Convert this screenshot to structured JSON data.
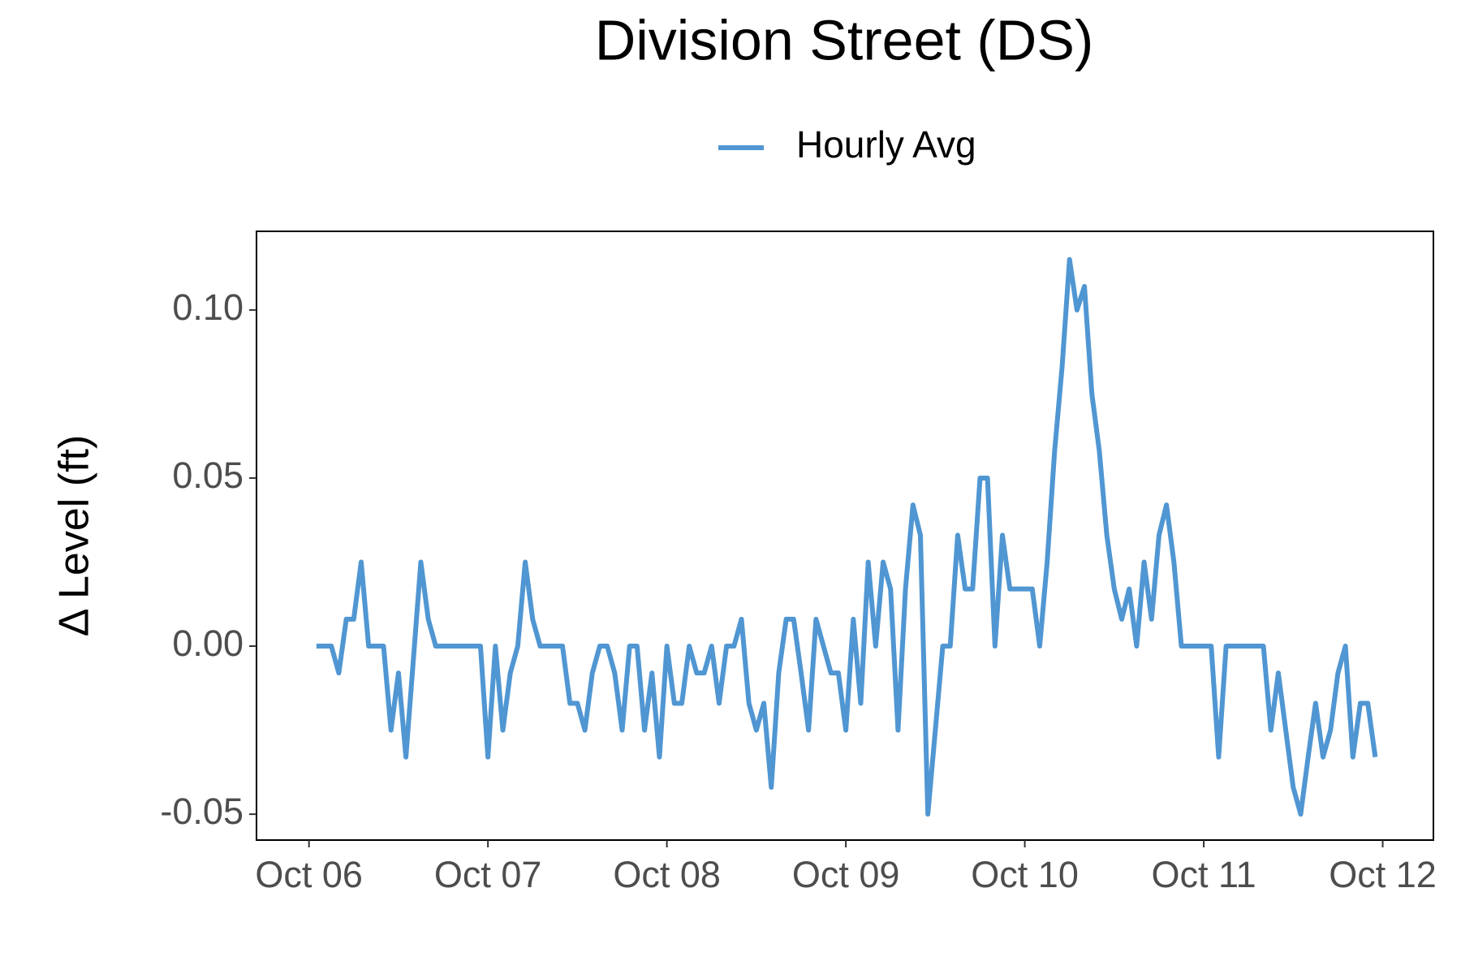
{
  "chart_data": {
    "type": "line",
    "title": "Division Street (DS)",
    "y_label": "Δ Level (ft)",
    "x": [
      1,
      3,
      4,
      5,
      6,
      7,
      8,
      10,
      11,
      12,
      13,
      15,
      16,
      17,
      23,
      24,
      25,
      26,
      27,
      28,
      29,
      30,
      31,
      34,
      35,
      36,
      37,
      38,
      39,
      40,
      41,
      42,
      43,
      44,
      45,
      46,
      47,
      48,
      49,
      50,
      51,
      52,
      53,
      54,
      55,
      56,
      57,
      58,
      59,
      60,
      61,
      62,
      63,
      64,
      65,
      66,
      67,
      68,
      69,
      70,
      71,
      72,
      73,
      74,
      75,
      76,
      77,
      78,
      79,
      80,
      81,
      82,
      83,
      84,
      85,
      86,
      87,
      88,
      89,
      90,
      91,
      92,
      93,
      94,
      95,
      97,
      98,
      99,
      100,
      101,
      102,
      103,
      104,
      105,
      106,
      107,
      108,
      109,
      110,
      111,
      112,
      113,
      114,
      115,
      116,
      117,
      121,
      122,
      123,
      128,
      129,
      130,
      131,
      132,
      133,
      134,
      135,
      136,
      137,
      138,
      139,
      140,
      141,
      142,
      143
    ],
    "series": [
      {
        "name": "Hourly Avg",
        "color": "#5096d2",
        "values": [
          0,
          0,
          -0.008,
          0.008,
          0.008,
          0.025,
          0,
          0,
          -0.025,
          -0.008,
          -0.033,
          0.025,
          0.008,
          0,
          0,
          -0.033,
          0,
          -0.025,
          -0.008,
          0,
          0.025,
          0.008,
          0,
          0,
          -0.017,
          -0.017,
          -0.025,
          -0.008,
          0,
          0,
          -0.008,
          -0.025,
          0,
          0,
          -0.025,
          -0.008,
          -0.033,
          0,
          -0.017,
          -0.017,
          0,
          -0.008,
          -0.008,
          0,
          -0.017,
          0,
          0,
          0.008,
          -0.017,
          -0.025,
          -0.017,
          -0.042,
          -0.008,
          0.008,
          0.008,
          -0.008,
          -0.025,
          0.008,
          0,
          -0.008,
          -0.008,
          -0.025,
          0.008,
          -0.017,
          0.025,
          0,
          0.025,
          0.017,
          -0.025,
          0.017,
          0.042,
          0.033,
          -0.05,
          -0.025,
          0,
          0,
          0.033,
          0.017,
          0.017,
          0.05,
          0.05,
          0,
          0.033,
          0.017,
          0.017,
          0.017,
          0,
          0.025,
          0.058,
          0.083,
          0.115,
          0.1,
          0.107,
          0.075,
          0.058,
          0.033,
          0.017,
          0.008,
          0.017,
          0,
          0.025,
          0.008,
          0.033,
          0.042,
          0.025,
          0,
          0,
          -0.033,
          0,
          0,
          -0.025,
          -0.008,
          -0.025,
          -0.042,
          -0.05,
          -0.033,
          -0.017,
          -0.033,
          -0.025,
          -0.008,
          0,
          -0.033,
          -0.017,
          -0.017,
          -0.033
        ]
      }
    ],
    "xlim": [
      -7.04,
      150.8
    ],
    "xticks": [
      {
        "value": 0,
        "label": "Oct 06"
      },
      {
        "value": 24,
        "label": "Oct 07"
      },
      {
        "value": 48,
        "label": "Oct 08"
      },
      {
        "value": 72,
        "label": "Oct 09"
      },
      {
        "value": 96,
        "label": "Oct 10"
      },
      {
        "value": 120,
        "label": "Oct 11"
      },
      {
        "value": 144,
        "label": "Oct 12"
      }
    ],
    "ylim": [
      -0.0577,
      0.1234
    ],
    "yticks": [
      -0.05,
      {
        "value": 0,
        "label": "0.00"
      },
      0.05,
      {
        "value": 0.1,
        "label": "0.10"
      }
    ],
    "grid": false
  }
}
